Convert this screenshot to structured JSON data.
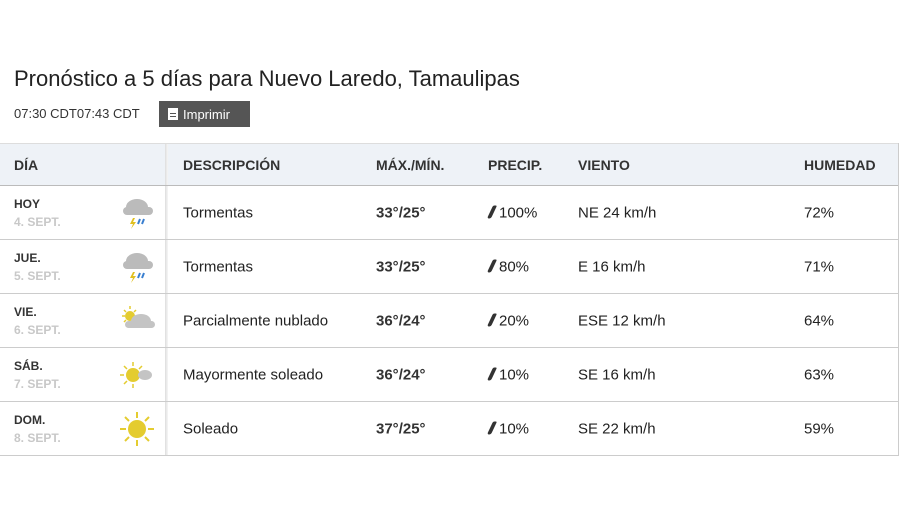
{
  "title": "Pronóstico a 5 días para Nuevo Laredo, Tamaulipas",
  "times": "07:30 CDT07:43 CDT",
  "print_label": "Imprimir",
  "headers": {
    "day": "DÍA",
    "desc": "DESCRIPCIÓN",
    "temp": "MÁX./MÍN.",
    "precip": "PRECIP.",
    "wind": "VIENTO",
    "humidity": "HUMEDAD"
  },
  "rows": [
    {
      "day": "HOY",
      "date": "4. SEPT.",
      "icon": "thunderstorm-icon",
      "desc": "Tormentas",
      "max": "33°",
      "min": "25°",
      "precip": "100%",
      "wind": "NE 24 km/h",
      "humidity": "72%"
    },
    {
      "day": "JUE.",
      "date": "5. SEPT.",
      "icon": "thunderstorm-icon",
      "desc": "Tormentas",
      "max": "33°",
      "min": "25°",
      "precip": "80%",
      "wind": "E 16 km/h",
      "humidity": "71%"
    },
    {
      "day": "VIE.",
      "date": "6. SEPT.",
      "icon": "partly-cloudy-icon",
      "desc": "Parcialmente nublado",
      "max": "36°",
      "min": "24°",
      "precip": "20%",
      "wind": "ESE 12 km/h",
      "humidity": "64%"
    },
    {
      "day": "SÁB.",
      "date": "7. SEPT.",
      "icon": "mostly-sunny-icon",
      "desc": "Mayormente soleado",
      "max": "36°",
      "min": "24°",
      "precip": "10%",
      "wind": "SE 16 km/h",
      "humidity": "63%"
    },
    {
      "day": "DOM.",
      "date": "8. SEPT.",
      "icon": "sunny-icon",
      "desc": "Soleado",
      "max": "37°",
      "min": "25°",
      "precip": "10%",
      "wind": "SE 22 km/h",
      "humidity": "59%"
    }
  ]
}
